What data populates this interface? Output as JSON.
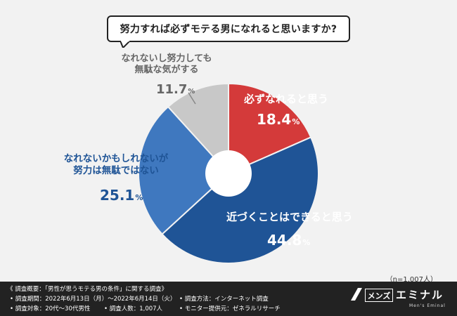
{
  "title": "努力すれば必ずモテる男になれると思いますか?",
  "chart_data": {
    "type": "pie",
    "variant": "donut",
    "slices": [
      {
        "label_lines": [
          "必ずなれると思う"
        ],
        "value": 18.4,
        "value_text": "18.4",
        "color": "#d43a3a",
        "label_color": "#ffffff",
        "pct_color": "#ffffff"
      },
      {
        "label_lines": [
          "近づくことはできると思う"
        ],
        "value": 44.8,
        "value_text": "44.8",
        "color": "#1f5496",
        "label_color": "#ffffff",
        "pct_color": "#ffffff"
      },
      {
        "label_lines": [
          "なれないかもしれないが",
          "努力は無駄ではない"
        ],
        "value": 25.1,
        "value_text": "25.1",
        "color": "#3f78bf",
        "label_color": "#1f5496",
        "pct_color": "#1f5496"
      },
      {
        "label_lines": [
          "なれないし努力しても",
          "無駄な気がする"
        ],
        "value": 11.7,
        "value_text": "11.7",
        "color": "#c8c8c8",
        "label_color": "#666666",
        "pct_color": "#666666"
      }
    ],
    "unit": "%"
  },
  "sample_note": "（n=1,007人）",
  "footer": {
    "line1": "《 調査概要：「男性が思うモテる男の条件」に関する調査》",
    "period": "• 調査期間：2022年6月13日（月）〜2022年6月14日（火）",
    "method": "• 調査方法：インターネット調査",
    "target": "• 調査対象：20代〜30代男性",
    "count": "• 調査人数：1,007人",
    "provider": "• モニター提供元：ゼネラルリサーチ"
  },
  "logo": {
    "badge": "メンズ",
    "name": "エミナル",
    "sub": "Men's Eminal"
  }
}
